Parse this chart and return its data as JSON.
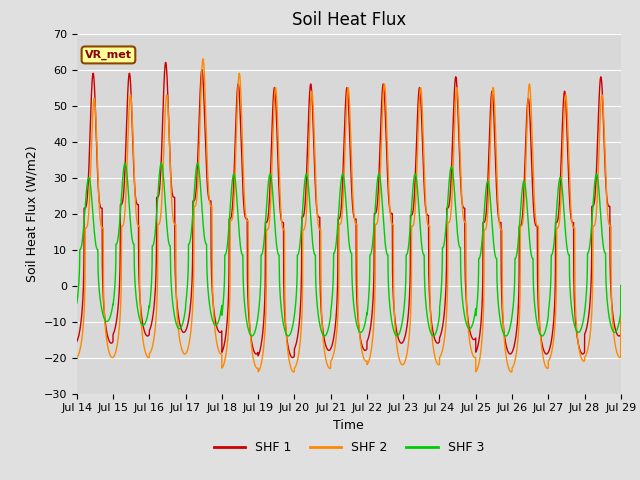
{
  "title": "Soil Heat Flux",
  "xlabel": "Time",
  "ylabel": "Soil Heat Flux (W/m2)",
  "ylim": [
    -30,
    70
  ],
  "yticks": [
    -30,
    -20,
    -10,
    0,
    10,
    20,
    30,
    40,
    50,
    60,
    70
  ],
  "xtick_labels": [
    "Jul 14",
    "Jul 15",
    "Jul 16",
    "Jul 17",
    "Jul 18",
    "Jul 19",
    "Jul 20",
    "Jul 21",
    "Jul 22",
    "Jul 23",
    "Jul 24",
    "Jul 25",
    "Jul 26",
    "Jul 27",
    "Jul 28",
    "Jul 29"
  ],
  "colors": {
    "SHF 1": "#cc0000",
    "SHF 2": "#ff8800",
    "SHF 3": "#00cc00"
  },
  "legend_label": "VR_met",
  "background_color": "#e0e0e0",
  "plot_bg_color": "#d8d8d8",
  "n_days": 15,
  "start_day": 14,
  "shf1_peaks": [
    59,
    59,
    62,
    60,
    56,
    55,
    56,
    55,
    56,
    55,
    58,
    54,
    52,
    54,
    58
  ],
  "shf2_peaks": [
    52,
    53,
    53,
    63,
    59,
    55,
    54,
    55,
    56,
    55,
    55,
    55,
    56,
    53,
    53
  ],
  "shf3_peaks": [
    30,
    34,
    34,
    34,
    31,
    31,
    31,
    31,
    31,
    31,
    33,
    29,
    29,
    30,
    31
  ],
  "shf1_troughs": [
    -16,
    -14,
    -13,
    -13,
    -19,
    -20,
    -18,
    -18,
    -16,
    -16,
    -15,
    -19,
    -19,
    -19,
    -14
  ],
  "shf2_troughs": [
    -20,
    -20,
    -19,
    -19,
    -23,
    -24,
    -23,
    -21,
    -22,
    -22,
    -20,
    -24,
    -23,
    -21,
    -20
  ],
  "shf3_troughs": [
    -10,
    -11,
    -12,
    -11,
    -14,
    -14,
    -14,
    -13,
    -14,
    -14,
    -12,
    -14,
    -14,
    -13,
    -13
  ],
  "phase_shf1": 0.0,
  "phase_shf2": -0.03,
  "phase_shf3": 0.12,
  "sharpness": 4.0
}
